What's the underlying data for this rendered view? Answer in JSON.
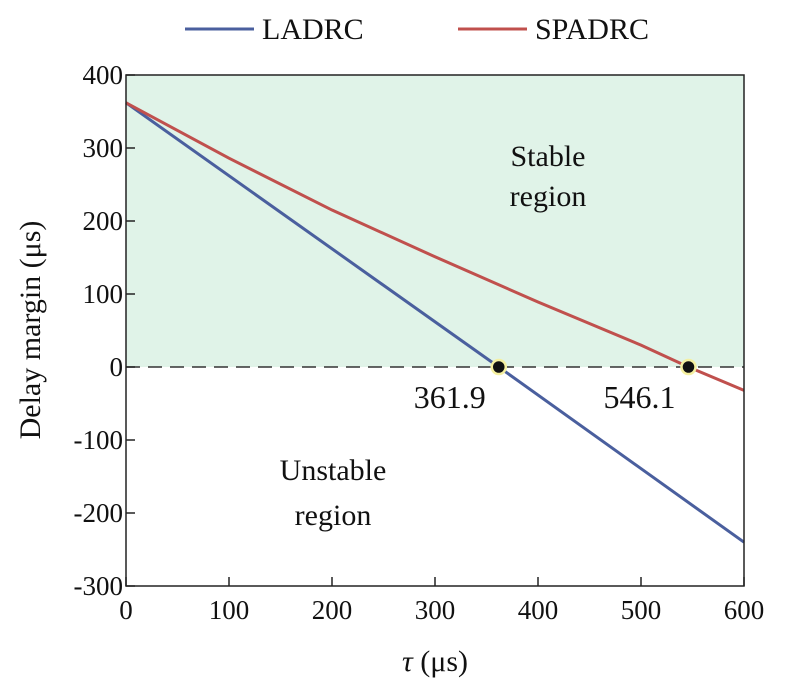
{
  "chart_data": {
    "type": "line",
    "title": "",
    "xlabel_symbol": "τ",
    "xlabel_unit": " (μs)",
    "ylabel": "Delay margin (μs)",
    "xlim": [
      0,
      600
    ],
    "ylim": [
      -300,
      400
    ],
    "xticks": [
      0,
      100,
      200,
      300,
      400,
      500,
      600
    ],
    "yticks": [
      400,
      300,
      200,
      100,
      0,
      -100,
      -200,
      -300
    ],
    "legend_position": "top",
    "series": [
      {
        "name": "LADRC",
        "color": "#4a5f9e",
        "x": [
          0,
          361.9,
          600
        ],
        "y": [
          362,
          0,
          -240
        ]
      },
      {
        "name": "SPADRC",
        "color": "#c0504d",
        "x": [
          0,
          100,
          200,
          300,
          400,
          500,
          546.1,
          600
        ],
        "y": [
          362,
          286,
          215,
          151,
          89,
          30,
          0,
          -32
        ]
      }
    ],
    "regions": [
      {
        "label_line1": "Stable",
        "label_line2": "region",
        "color": "#e0f3e8",
        "y_range": [
          0,
          400
        ]
      },
      {
        "label_line1": "Unstable",
        "label_line2": "region",
        "y_range": [
          -300,
          0
        ]
      }
    ],
    "zero_line": {
      "y": 0,
      "style": "dashed"
    },
    "annotations": [
      {
        "x": 361.9,
        "y": 0,
        "label": "361.9"
      },
      {
        "x": 546.1,
        "y": 0,
        "label": "546.1"
      }
    ]
  }
}
